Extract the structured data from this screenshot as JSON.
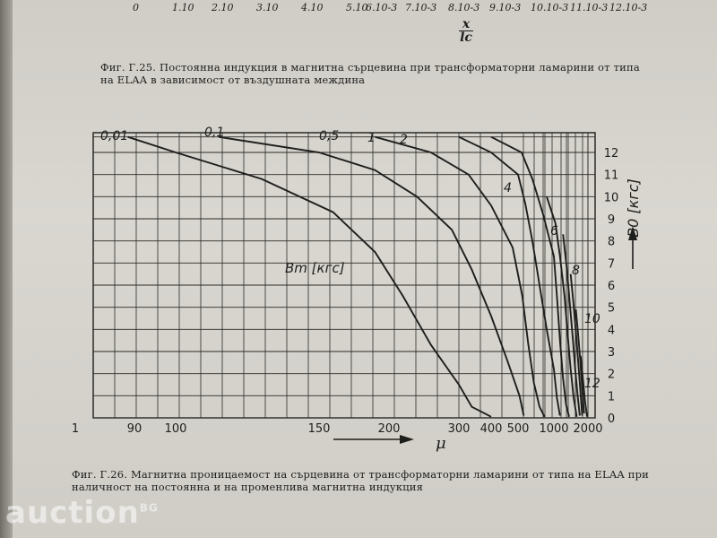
{
  "top_scale": {
    "labels": [
      "0",
      "1.10",
      "2.10",
      "3.10",
      "4.10",
      "5.10",
      "6.10-3",
      "7.10-3",
      "8.10-3",
      "9.10-3",
      "10.10-3",
      "11.10-3",
      "12.10-3"
    ],
    "fraction_num": "x",
    "fraction_den": "lc"
  },
  "caption_top": "Фиг. Г.25. Постоянна индукция в магнитна сърцевина при трансформаторни ламарини от типа на ELAA в зависимост от въздушната междина",
  "caption_bottom": "Фиг. Г.26. Магнитна проницаемост на сърцевина от трансформаторни ламарини от типа на ELAA при наличност на постоянна и на променлива магнитна индукция",
  "watermark": "auction",
  "watermark_suffix": "BG",
  "colors": {
    "paper": "#d6d4cd",
    "ink": "#1e1e1c",
    "grid": "#2a2a28"
  },
  "chart_data": {
    "type": "line",
    "xlabel": "μ",
    "ylabel": "B0 [кгс]",
    "inner_label": "Bm [кгс]",
    "x_scale": "log",
    "x_ticks": [
      "1",
      "90",
      "100",
      "150",
      "200",
      "300",
      "400",
      "500",
      "1000",
      "2000"
    ],
    "y_ticks": [
      "0",
      "1",
      "2",
      "3",
      "4",
      "5",
      "6",
      "7",
      "8",
      "9",
      "10",
      "11",
      "12"
    ],
    "ylim": [
      0,
      13
    ],
    "grid": true,
    "series": [
      {
        "name": "0,01",
        "points": [
          [
            80,
            12.7
          ],
          [
            100,
            12.0
          ],
          [
            130,
            10.8
          ],
          [
            160,
            9.3
          ],
          [
            190,
            7.5
          ],
          [
            220,
            5.5
          ],
          [
            260,
            3.3
          ],
          [
            300,
            1.5
          ],
          [
            340,
            0.5
          ],
          [
            400,
            0.05
          ]
        ]
      },
      {
        "name": "0,1",
        "points": [
          [
            115,
            12.7
          ],
          [
            150,
            12.0
          ],
          [
            190,
            11.2
          ],
          [
            240,
            10.0
          ],
          [
            290,
            8.5
          ],
          [
            340,
            6.7
          ],
          [
            400,
            4.6
          ],
          [
            460,
            2.6
          ],
          [
            520,
            1.0
          ],
          [
            580,
            0.1
          ]
        ]
      },
      {
        "name": "0,5",
        "points": [
          [
            190,
            12.7
          ],
          [
            260,
            12.0
          ],
          [
            330,
            11.0
          ],
          [
            400,
            9.6
          ],
          [
            480,
            7.7
          ],
          [
            560,
            5.5
          ],
          [
            640,
            3.4
          ],
          [
            720,
            1.6
          ],
          [
            800,
            0.5
          ],
          [
            870,
            0.05
          ]
        ]
      },
      {
        "name": "1",
        "points": [
          [
            300,
            12.7
          ],
          [
            400,
            12.0
          ],
          [
            500,
            11.0
          ],
          [
            600,
            9.7
          ],
          [
            700,
            8.0
          ],
          [
            800,
            6.0
          ],
          [
            900,
            4.0
          ],
          [
            1000,
            2.2
          ],
          [
            1100,
            0.9
          ],
          [
            1200,
            0.1
          ]
        ]
      },
      {
        "name": "2",
        "points": [
          [
            400,
            12.7
          ],
          [
            550,
            12.0
          ],
          [
            700,
            10.8
          ],
          [
            850,
            9.2
          ],
          [
            1000,
            7.3
          ],
          [
            1100,
            5.5
          ],
          [
            1200,
            3.5
          ],
          [
            1300,
            1.8
          ],
          [
            1400,
            0.6
          ],
          [
            1500,
            0.05
          ]
        ]
      },
      {
        "name": "4",
        "points": [
          [
            900,
            10.0
          ],
          [
            1050,
            8.8
          ],
          [
            1200,
            7.3
          ],
          [
            1350,
            5.5
          ],
          [
            1450,
            3.8
          ],
          [
            1550,
            2.2
          ],
          [
            1650,
            0.9
          ],
          [
            1750,
            0.05
          ]
        ]
      },
      {
        "name": "6",
        "points": [
          [
            1300,
            8.3
          ],
          [
            1420,
            6.8
          ],
          [
            1520,
            5.2
          ],
          [
            1620,
            3.6
          ],
          [
            1700,
            2.2
          ],
          [
            1780,
            1.0
          ],
          [
            1850,
            0.1
          ]
        ]
      },
      {
        "name": "8",
        "points": [
          [
            1550,
            6.5
          ],
          [
            1640,
            5.2
          ],
          [
            1720,
            3.9
          ],
          [
            1800,
            2.5
          ],
          [
            1870,
            1.2
          ],
          [
            1930,
            0.1
          ]
        ]
      },
      {
        "name": "10",
        "points": [
          [
            1720,
            4.9
          ],
          [
            1800,
            3.7
          ],
          [
            1870,
            2.5
          ],
          [
            1930,
            1.3
          ],
          [
            1990,
            0.2
          ]
        ]
      },
      {
        "name": "12",
        "points": [
          [
            1880,
            2.8
          ],
          [
            1950,
            1.8
          ],
          [
            2010,
            0.8
          ],
          [
            2050,
            0.05
          ]
        ]
      }
    ]
  }
}
